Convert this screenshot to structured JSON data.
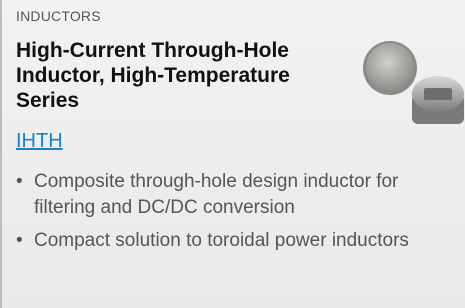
{
  "category": "INDUCTORS",
  "title": "High-Current Through-Hole Inductor, High-Temperature Series",
  "link": "IHTH",
  "bullets": [
    "Composite through-hole design inductor for filtering and DC/DC conversion",
    "Compact solution to toroidal power inductors"
  ]
}
